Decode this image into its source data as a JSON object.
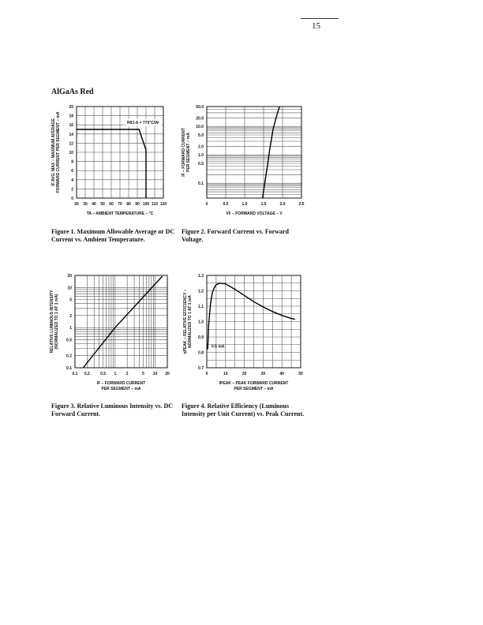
{
  "page_number": "15",
  "section_title": "AlGaAs Red",
  "captions": [
    "Figure 1. Maximum Allowable Average or DC Current vs. Ambient Temperature.",
    "Figure 2. Forward Current vs. Forward Voltage.",
    "Figure 3. Relative Luminous Intensity vs. DC Forward Current.",
    "Figure 4. Relative Efficiency (Luminous Intensity per Unit Current) vs. Peak Current."
  ],
  "chart_data": [
    {
      "type": "line",
      "xscale": "linear",
      "yscale": "linear",
      "xlim": [
        20,
        120
      ],
      "ylim": [
        0,
        20
      ],
      "xticks": [
        20,
        30,
        40,
        50,
        60,
        70,
        80,
        90,
        100,
        110,
        120
      ],
      "yticks": [
        0,
        2,
        4,
        6,
        8,
        10,
        12,
        14,
        16,
        18,
        20
      ],
      "xlabel": "TA – AMBIENT TEMPERATURE – °C",
      "ylabel": [
        "IF AVG. MAX – MAXIMUM AVERAGE",
        "FORWARD CURRENT PER SEGMENT – mA"
      ],
      "annotation": "RθJ-A = 770°C/W",
      "grid": true,
      "x": [
        20,
        92,
        100,
        100
      ],
      "y": [
        15,
        15,
        10.5,
        0
      ]
    },
    {
      "type": "line",
      "xscale": "linear",
      "yscale": "log",
      "xlim": [
        0,
        2.5
      ],
      "ylim": [
        0.03,
        50
      ],
      "xticks": [
        0,
        0.5,
        1.0,
        1.5,
        2.0,
        2.5
      ],
      "xticklabels": [
        "0",
        "0.5",
        "1.0",
        "1.5",
        "2.0",
        "2.5"
      ],
      "yticks": [
        0.1,
        0.5,
        1,
        2,
        5,
        10,
        20,
        50
      ],
      "yticklabels": [
        "0.1",
        "0.5",
        "1.0",
        "2.0",
        "5.0",
        "10.0",
        "20.0",
        "50.0"
      ],
      "xlabel": "VF – FORWARD VOLTAGE – V",
      "ylabel": [
        "IF – FORWARD CURRENT",
        "PER SEGMENT – mA"
      ],
      "grid": true,
      "x": [
        1.47,
        1.55,
        1.6,
        1.66,
        1.75,
        1.85,
        1.92
      ],
      "y": [
        0.03,
        0.15,
        0.4,
        1.5,
        8,
        25,
        50
      ]
    },
    {
      "type": "line",
      "xscale": "log",
      "yscale": "log",
      "xlim": [
        0.1,
        20
      ],
      "ylim": [
        0.1,
        20
      ],
      "xticks": [
        0.1,
        0.2,
        0.5,
        1,
        2,
        5,
        10,
        20
      ],
      "xticklabels": [
        "0.1",
        "0.2",
        "0.5",
        "1",
        "2",
        "5",
        "10",
        "20"
      ],
      "yticks": [
        0.1,
        0.2,
        0.5,
        1,
        2,
        5,
        10,
        20
      ],
      "yticklabels": [
        "0.1",
        "0.2",
        "0.5",
        "1",
        "2",
        "5",
        "10",
        "20"
      ],
      "xlabel": [
        "IF – FORWARD CURRENT",
        "PER SEGMENT – mA"
      ],
      "ylabel": [
        "RELATIVE LUMINOUS INTENSITY",
        "(NORMALIZED TO 1 AT 1 mA)"
      ],
      "grid": true,
      "x": [
        0.16,
        1,
        15
      ],
      "y": [
        0.1,
        1,
        19
      ]
    },
    {
      "type": "line",
      "xscale": "linear",
      "yscale": "linear",
      "xlim": [
        0,
        50
      ],
      "ylim": [
        0.7,
        1.3
      ],
      "xticks": [
        0,
        10,
        20,
        30,
        40,
        50
      ],
      "yticks": [
        0.7,
        0.8,
        0.9,
        1.0,
        1.1,
        1.2,
        1.3
      ],
      "yticklabels": [
        "0.7",
        "0.8",
        "0.9",
        "1.0",
        "1.1",
        "1.2",
        "1.3"
      ],
      "xlabel": [
        "IPEAK – PEAK FORWARD CURRENT",
        "PER SEGMENT – mA"
      ],
      "ylabel": [
        "ηPEAK – RELATIVE EFFICIENCY –",
        "NORMALIZED TO 1 AT 1 mA"
      ],
      "annotation": "0.5 mA",
      "grid": true,
      "x": [
        0.5,
        1,
        2,
        3,
        4,
        5,
        7,
        10,
        15,
        20,
        25,
        30,
        35,
        40,
        45,
        47
      ],
      "y": [
        0.82,
        0.98,
        1.12,
        1.19,
        1.22,
        1.24,
        1.25,
        1.245,
        1.21,
        1.17,
        1.13,
        1.095,
        1.065,
        1.04,
        1.02,
        1.015
      ]
    }
  ]
}
